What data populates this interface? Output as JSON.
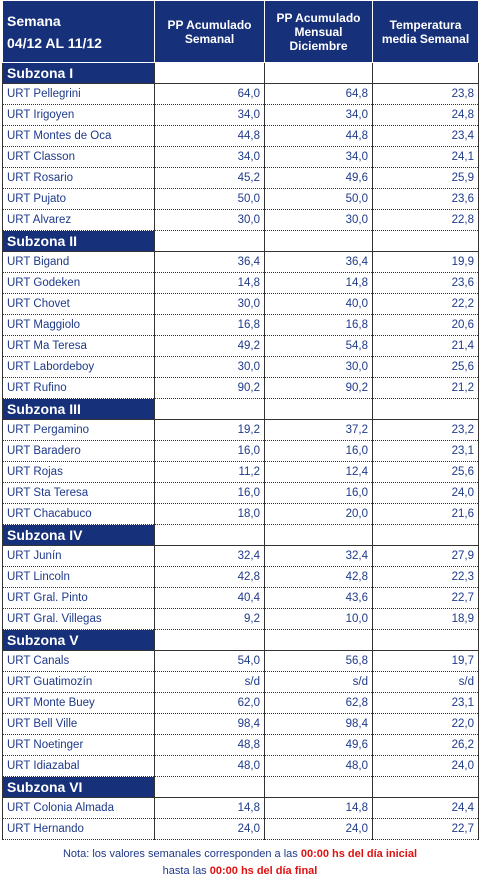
{
  "header": {
    "title": "Semana",
    "period": "04/12 AL 11/12",
    "columns": [
      "PP Acumulado Semanal",
      "PP Acumulado Mensual Diciembre",
      "Temperatura media Semanal"
    ]
  },
  "sections": [
    {
      "title": "Subzona I",
      "rows": [
        [
          "URT Pellegrini",
          "64,0",
          "64,8",
          "23,8"
        ],
        [
          "URT Irigoyen",
          "34,0",
          "34,0",
          "24,8"
        ],
        [
          "URT Montes de Oca",
          "44,8",
          "44,8",
          "23,4"
        ],
        [
          "URT Classon",
          "34,0",
          "34,0",
          "24,1"
        ],
        [
          "URT Rosario",
          "45,2",
          "49,6",
          "25,9"
        ],
        [
          "URT Pujato",
          "50,0",
          "50,0",
          "23,6"
        ],
        [
          "URT Alvarez",
          "30,0",
          "30,0",
          "22,8"
        ]
      ]
    },
    {
      "title": "Subzona II",
      "rows": [
        [
          "URT Bigand",
          "36,4",
          "36,4",
          "19,9"
        ],
        [
          "URT Godeken",
          "14,8",
          "14,8",
          "23,6"
        ],
        [
          "URT Chovet",
          "30,0",
          "40,0",
          "22,2"
        ],
        [
          "URT Maggiolo",
          "16,8",
          "16,8",
          "20,6"
        ],
        [
          "URT Ma Teresa",
          "49,2",
          "54,8",
          "21,4"
        ],
        [
          "URT Labordeboy",
          "30,0",
          "30,0",
          "25,6"
        ],
        [
          "URT Rufino",
          "90,2",
          "90,2",
          "21,2"
        ]
      ]
    },
    {
      "title": "Subzona III",
      "rows": [
        [
          "URT Pergamino",
          "19,2",
          "37,2",
          "23,2"
        ],
        [
          "URT Baradero",
          "16,0",
          "16,0",
          "23,1"
        ],
        [
          "URT Rojas",
          "11,2",
          "12,4",
          "25,6"
        ],
        [
          "URT Sta Teresa",
          "16,0",
          "16,0",
          "24,0"
        ],
        [
          "URT Chacabuco",
          "18,0",
          "20,0",
          "21,6"
        ]
      ]
    },
    {
      "title": "Subzona IV",
      "rows": [
        [
          "URT Junín",
          "32,4",
          "32,4",
          "27,9"
        ],
        [
          "URT Lincoln",
          "42,8",
          "42,8",
          "22,3"
        ],
        [
          "URT Gral. Pinto",
          "40,4",
          "43,6",
          "22,7"
        ],
        [
          "URT Gral. Villegas",
          "9,2",
          "10,0",
          "18,9"
        ]
      ]
    },
    {
      "title": "Subzona V",
      "rows": [
        [
          "URT Canals",
          "54,0",
          "56,8",
          "19,7"
        ],
        [
          "URT Guatimozín",
          "s/d",
          "s/d",
          "s/d"
        ],
        [
          "URT Monte Buey",
          "62,0",
          "62,8",
          "23,1"
        ],
        [
          "URT Bell Ville",
          "98,4",
          "98,4",
          "22,0"
        ],
        [
          "URT Noetinger",
          "48,8",
          "49,6",
          "26,2"
        ],
        [
          "URT Idiazabal",
          "48,0",
          "48,0",
          "24,0"
        ]
      ]
    },
    {
      "title": "Subzona VI",
      "rows": [
        [
          "URT Colonia Almada",
          "14,8",
          "14,8",
          "24,4"
        ],
        [
          "URT Hernando",
          "24,0",
          "24,0",
          "22,7"
        ]
      ]
    }
  ],
  "note": {
    "text1": "Nota: los valores semanales corresponden a las",
    "red1": "00:00 hs del día inicial",
    "text2": "hasta las",
    "red2": "00:00 hs del día final"
  }
}
